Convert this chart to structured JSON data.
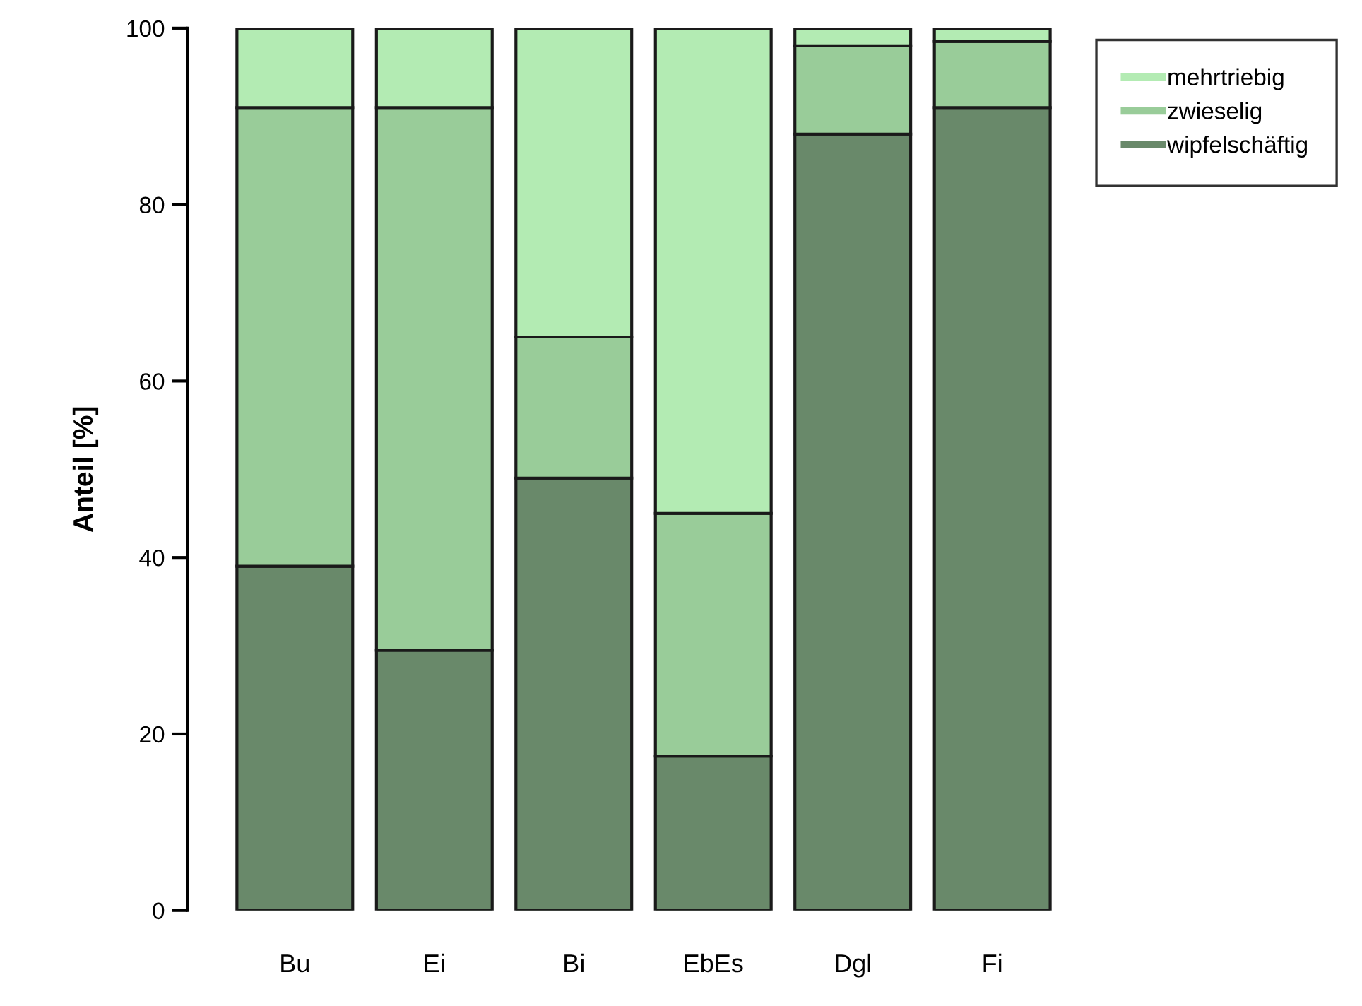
{
  "chart_data": {
    "type": "bar",
    "stacked": true,
    "ylabel": "Anteil [%]",
    "categories": [
      "Bu",
      "Ei",
      "Bi",
      "EbEs",
      "Dgl",
      "Fi"
    ],
    "series": [
      {
        "name": "wipfelschäftig",
        "color": "#69896a",
        "values": [
          39,
          29.5,
          49,
          17.5,
          88,
          91
        ]
      },
      {
        "name": "zwieselig",
        "color": "#99cc99",
        "values": [
          52,
          61.5,
          16,
          27.5,
          10,
          7.5
        ]
      },
      {
        "name": "mehrtriebig",
        "color": "#b3ebb3",
        "values": [
          9,
          9,
          35,
          55,
          2,
          1.5
        ]
      }
    ],
    "ylim": [
      0,
      100
    ],
    "yticks": [
      0,
      20,
      40,
      60,
      80,
      100
    ],
    "grid": false,
    "legend": "top right"
  }
}
